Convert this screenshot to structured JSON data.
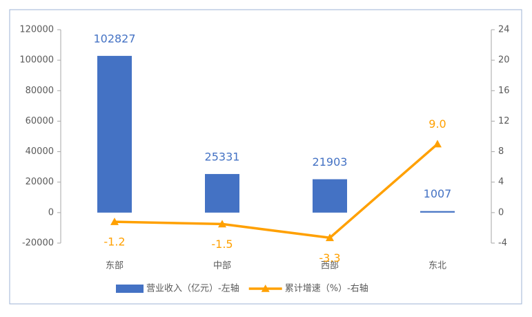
{
  "chart_data": {
    "type": "bar",
    "categories": [
      "东部",
      "中部",
      "西部",
      "东北"
    ],
    "series": [
      {
        "name": "营业收入（亿元）-左轴",
        "type": "bar",
        "color": "#4472c4",
        "values": [
          102827,
          25331,
          21903,
          1007
        ]
      },
      {
        "name": "累计增速（%）-右轴",
        "type": "line",
        "color": "#ffa000",
        "axis": "y2",
        "values": [
          -1.2,
          -1.5,
          -3.3,
          9.0
        ],
        "value_labels": [
          "-1.2",
          "-1.5",
          "-3.3",
          "9.0"
        ]
      }
    ],
    "ylim": [
      -20000,
      120000
    ],
    "yticks": [
      -20000,
      0,
      20000,
      40000,
      60000,
      80000,
      100000,
      120000
    ],
    "y2lim": [
      -4,
      24
    ],
    "y2ticks": [
      -4,
      0,
      4,
      8,
      12,
      16,
      20,
      24
    ],
    "grid": false,
    "legend": "bottom"
  }
}
